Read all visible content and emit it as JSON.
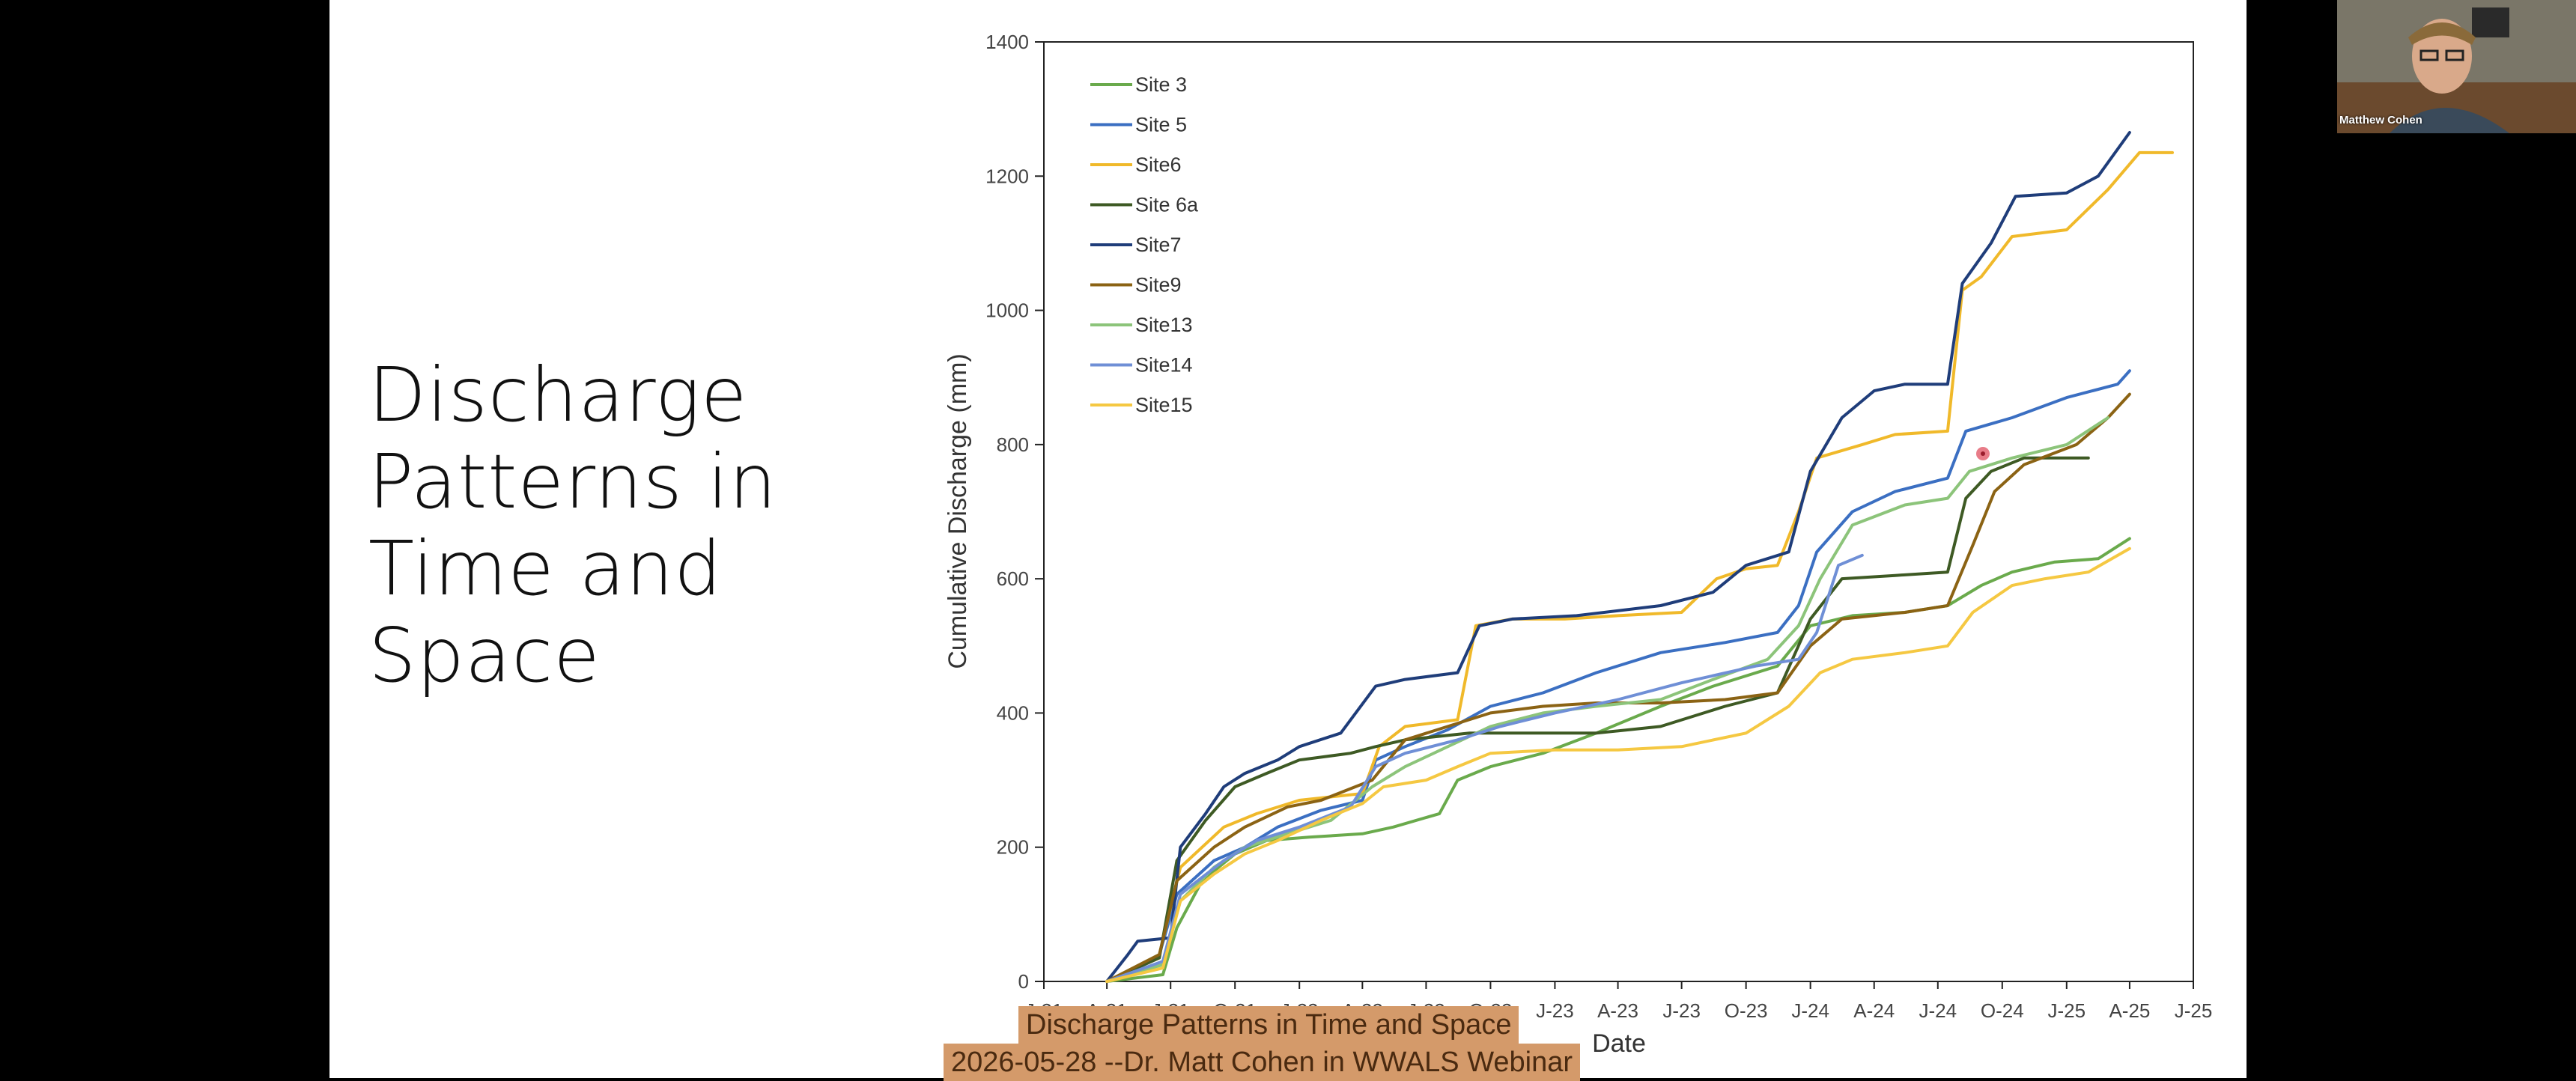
{
  "slide": {
    "title": "Discharge Patterns in Time and Space"
  },
  "participant": {
    "name": "Matthew Cohen"
  },
  "captions": {
    "line1": "Discharge Patterns in Time and Space",
    "line2": "2026-05-28 --Dr. Matt Cohen in WWALS Webinar"
  },
  "chart_data": {
    "type": "line",
    "title": "",
    "xlabel": "Date",
    "ylabel": "Cumulative Discharge (mm)",
    "ylim": [
      0,
      1400
    ],
    "yticks": [
      0,
      200,
      400,
      600,
      800,
      1000,
      1200,
      1400
    ],
    "xlim": [
      "2021-01-01",
      "2025-07-01"
    ],
    "xticks": [
      {
        "date": "2021-01-01",
        "label": "J-21"
      },
      {
        "date": "2021-04-01",
        "label": "A-21"
      },
      {
        "date": "2021-07-01",
        "label": "J-21"
      },
      {
        "date": "2021-10-01",
        "label": "O-21"
      },
      {
        "date": "2022-01-01",
        "label": "J-22"
      },
      {
        "date": "2022-04-01",
        "label": "A-22"
      },
      {
        "date": "2022-07-01",
        "label": "J-22"
      },
      {
        "date": "2022-10-01",
        "label": "O-22"
      },
      {
        "date": "2023-01-01",
        "label": "J-23"
      },
      {
        "date": "2023-04-01",
        "label": "A-23"
      },
      {
        "date": "2023-07-01",
        "label": "J-23"
      },
      {
        "date": "2023-10-01",
        "label": "O-23"
      },
      {
        "date": "2024-01-01",
        "label": "J-24"
      },
      {
        "date": "2024-04-01",
        "label": "A-24"
      },
      {
        "date": "2024-07-01",
        "label": "J-24"
      },
      {
        "date": "2024-10-01",
        "label": "O-24"
      },
      {
        "date": "2025-01-01",
        "label": "J-25"
      },
      {
        "date": "2025-04-01",
        "label": "A-25"
      },
      {
        "date": "2025-07-01",
        "label": "J-25"
      }
    ],
    "grid": false,
    "legend_position": "top-left",
    "series": [
      {
        "name": "Site 3",
        "color": "#6aaa4c",
        "points": [
          [
            "2021-04-01",
            0
          ],
          [
            "2021-06-20",
            10
          ],
          [
            "2021-07-10",
            80
          ],
          [
            "2021-08-15",
            150
          ],
          [
            "2021-10-01",
            190
          ],
          [
            "2021-11-15",
            210
          ],
          [
            "2022-01-15",
            215
          ],
          [
            "2022-04-01",
            220
          ],
          [
            "2022-05-15",
            230
          ],
          [
            "2022-07-20",
            250
          ],
          [
            "2022-08-15",
            300
          ],
          [
            "2022-10-01",
            320
          ],
          [
            "2022-12-15",
            340
          ],
          [
            "2023-03-01",
            370
          ],
          [
            "2023-06-01",
            410
          ],
          [
            "2023-08-15",
            440
          ],
          [
            "2023-11-15",
            470
          ],
          [
            "2024-01-01",
            530
          ],
          [
            "2024-03-01",
            545
          ],
          [
            "2024-05-15",
            550
          ],
          [
            "2024-07-15",
            560
          ],
          [
            "2024-09-01",
            590
          ],
          [
            "2024-10-15",
            610
          ],
          [
            "2024-12-15",
            625
          ],
          [
            "2025-02-15",
            630
          ],
          [
            "2025-04-01",
            660
          ]
        ]
      },
      {
        "name": "Site 5",
        "color": "#3b6fc2",
        "points": [
          [
            "2021-04-01",
            0
          ],
          [
            "2021-06-15",
            40
          ],
          [
            "2021-07-10",
            130
          ],
          [
            "2021-09-01",
            180
          ],
          [
            "2021-10-15",
            200
          ],
          [
            "2021-12-01",
            230
          ],
          [
            "2022-02-01",
            255
          ],
          [
            "2022-04-01",
            270
          ],
          [
            "2022-04-20",
            330
          ],
          [
            "2022-06-01",
            350
          ],
          [
            "2022-08-01",
            375
          ],
          [
            "2022-10-01",
            410
          ],
          [
            "2022-12-15",
            430
          ],
          [
            "2023-03-01",
            460
          ],
          [
            "2023-06-01",
            490
          ],
          [
            "2023-09-01",
            505
          ],
          [
            "2023-11-15",
            520
          ],
          [
            "2023-12-15",
            560
          ],
          [
            "2024-01-10",
            640
          ],
          [
            "2024-03-01",
            700
          ],
          [
            "2024-05-01",
            730
          ],
          [
            "2024-07-15",
            750
          ],
          [
            "2024-08-10",
            820
          ],
          [
            "2024-10-15",
            840
          ],
          [
            "2025-01-01",
            870
          ],
          [
            "2025-03-15",
            890
          ],
          [
            "2025-04-01",
            910
          ]
        ]
      },
      {
        "name": "Site6",
        "color": "#f0b92a",
        "points": [
          [
            "2021-04-01",
            0
          ],
          [
            "2021-06-15",
            40
          ],
          [
            "2021-07-15",
            170
          ],
          [
            "2021-09-15",
            230
          ],
          [
            "2021-11-01",
            250
          ],
          [
            "2022-01-01",
            270
          ],
          [
            "2022-04-01",
            280
          ],
          [
            "2022-04-25",
            350
          ],
          [
            "2022-06-01",
            380
          ],
          [
            "2022-08-15",
            390
          ],
          [
            "2022-09-10",
            530
          ],
          [
            "2022-11-01",
            540
          ],
          [
            "2023-01-15",
            540
          ],
          [
            "2023-04-01",
            545
          ],
          [
            "2023-07-01",
            550
          ],
          [
            "2023-08-20",
            600
          ],
          [
            "2023-10-01",
            615
          ],
          [
            "2023-11-15",
            620
          ],
          [
            "2023-12-15",
            700
          ],
          [
            "2024-01-10",
            780
          ],
          [
            "2024-03-15",
            800
          ],
          [
            "2024-05-01",
            815
          ],
          [
            "2024-07-15",
            820
          ],
          [
            "2024-08-05",
            1030
          ],
          [
            "2024-09-01",
            1050
          ],
          [
            "2024-10-15",
            1110
          ],
          [
            "2025-01-01",
            1120
          ],
          [
            "2025-03-01",
            1180
          ],
          [
            "2025-04-15",
            1235
          ],
          [
            "2025-06-01",
            1235
          ]
        ]
      },
      {
        "name": "Site 6a",
        "color": "#3e5a24",
        "points": [
          [
            "2021-04-01",
            0
          ],
          [
            "2021-06-15",
            35
          ],
          [
            "2021-07-10",
            180
          ],
          [
            "2021-08-20",
            240
          ],
          [
            "2021-10-01",
            290
          ],
          [
            "2021-11-15",
            310
          ],
          [
            "2022-01-01",
            330
          ],
          [
            "2022-03-15",
            340
          ],
          [
            "2022-04-20",
            350
          ],
          [
            "2022-06-01",
            360
          ],
          [
            "2022-09-01",
            370
          ],
          [
            "2022-12-01",
            370
          ],
          [
            "2023-03-01",
            370
          ],
          [
            "2023-06-01",
            380
          ],
          [
            "2023-09-01",
            410
          ],
          [
            "2023-11-15",
            430
          ],
          [
            "2024-01-01",
            540
          ],
          [
            "2024-02-15",
            600
          ],
          [
            "2024-05-01",
            605
          ],
          [
            "2024-07-15",
            610
          ],
          [
            "2024-08-10",
            720
          ],
          [
            "2024-09-15",
            760
          ],
          [
            "2024-11-01",
            780
          ],
          [
            "2025-02-01",
            780
          ]
        ]
      },
      {
        "name": "Site7",
        "color": "#1f3d7a",
        "points": [
          [
            "2021-04-01",
            0
          ],
          [
            "2021-05-01",
            40
          ],
          [
            "2021-05-15",
            60
          ],
          [
            "2021-07-01",
            65
          ],
          [
            "2021-07-15",
            200
          ],
          [
            "2021-08-20",
            250
          ],
          [
            "2021-09-15",
            290
          ],
          [
            "2021-10-15",
            310
          ],
          [
            "2021-12-01",
            330
          ],
          [
            "2022-01-01",
            350
          ],
          [
            "2022-03-01",
            370
          ],
          [
            "2022-04-20",
            440
          ],
          [
            "2022-06-01",
            450
          ],
          [
            "2022-08-15",
            460
          ],
          [
            "2022-09-15",
            530
          ],
          [
            "2022-11-01",
            540
          ],
          [
            "2023-02-01",
            545
          ],
          [
            "2023-06-01",
            560
          ],
          [
            "2023-08-15",
            580
          ],
          [
            "2023-10-01",
            620
          ],
          [
            "2023-12-01",
            640
          ],
          [
            "2024-01-01",
            760
          ],
          [
            "2024-02-15",
            840
          ],
          [
            "2024-04-01",
            880
          ],
          [
            "2024-05-15",
            890
          ],
          [
            "2024-07-15",
            890
          ],
          [
            "2024-08-05",
            1040
          ],
          [
            "2024-09-15",
            1100
          ],
          [
            "2024-10-20",
            1170
          ],
          [
            "2025-01-01",
            1175
          ],
          [
            "2025-02-15",
            1200
          ],
          [
            "2025-04-01",
            1265
          ]
        ]
      },
      {
        "name": "Site9",
        "color": "#8b6314",
        "points": [
          [
            "2021-04-01",
            0
          ],
          [
            "2021-06-15",
            40
          ],
          [
            "2021-07-10",
            150
          ],
          [
            "2021-09-01",
            200
          ],
          [
            "2021-10-15",
            230
          ],
          [
            "2021-12-15",
            260
          ],
          [
            "2022-02-01",
            270
          ],
          [
            "2022-04-15",
            300
          ],
          [
            "2022-06-01",
            360
          ],
          [
            "2022-08-01",
            380
          ],
          [
            "2022-10-01",
            400
          ],
          [
            "2022-12-15",
            410
          ],
          [
            "2023-03-01",
            415
          ],
          [
            "2023-06-01",
            415
          ],
          [
            "2023-09-01",
            420
          ],
          [
            "2023-11-15",
            430
          ],
          [
            "2024-01-01",
            500
          ],
          [
            "2024-02-15",
            540
          ],
          [
            "2024-05-15",
            550
          ],
          [
            "2024-07-15",
            560
          ],
          [
            "2024-08-20",
            650
          ],
          [
            "2024-09-20",
            730
          ],
          [
            "2024-11-01",
            770
          ],
          [
            "2025-01-15",
            800
          ],
          [
            "2025-03-01",
            840
          ],
          [
            "2025-04-01",
            875
          ]
        ]
      },
      {
        "name": "Site13",
        "color": "#8cc47a",
        "points": [
          [
            "2021-04-01",
            0
          ],
          [
            "2021-06-20",
            25
          ],
          [
            "2021-07-15",
            120
          ],
          [
            "2021-09-01",
            170
          ],
          [
            "2021-10-15",
            200
          ],
          [
            "2021-12-15",
            220
          ],
          [
            "2022-02-15",
            240
          ],
          [
            "2022-04-15",
            290
          ],
          [
            "2022-06-01",
            320
          ],
          [
            "2022-08-01",
            350
          ],
          [
            "2022-10-01",
            380
          ],
          [
            "2022-12-15",
            400
          ],
          [
            "2023-03-01",
            410
          ],
          [
            "2023-06-01",
            420
          ],
          [
            "2023-08-15",
            450
          ],
          [
            "2023-11-01",
            480
          ],
          [
            "2023-12-15",
            530
          ],
          [
            "2024-01-15",
            600
          ],
          [
            "2024-03-01",
            680
          ],
          [
            "2024-05-15",
            710
          ],
          [
            "2024-07-15",
            720
          ],
          [
            "2024-08-15",
            760
          ],
          [
            "2024-10-15",
            780
          ],
          [
            "2025-01-01",
            800
          ],
          [
            "2025-03-01",
            840
          ]
        ]
      },
      {
        "name": "Site14",
        "color": "#6f8fd6",
        "points": [
          [
            "2021-04-01",
            0
          ],
          [
            "2021-06-20",
            30
          ],
          [
            "2021-07-15",
            130
          ],
          [
            "2021-09-15",
            180
          ],
          [
            "2021-11-01",
            210
          ],
          [
            "2022-01-01",
            230
          ],
          [
            "2022-03-15",
            260
          ],
          [
            "2022-04-20",
            320
          ],
          [
            "2022-06-01",
            340
          ],
          [
            "2022-08-15",
            360
          ],
          [
            "2022-10-15",
            380
          ],
          [
            "2023-01-01",
            400
          ],
          [
            "2023-04-01",
            420
          ],
          [
            "2023-07-01",
            445
          ],
          [
            "2023-10-15",
            470
          ],
          [
            "2023-12-15",
            480
          ],
          [
            "2024-01-10",
            520
          ],
          [
            "2024-02-10",
            620
          ],
          [
            "2024-03-15",
            635
          ]
        ]
      },
      {
        "name": "Site15",
        "color": "#f5c842",
        "points": [
          [
            "2021-04-01",
            0
          ],
          [
            "2021-06-20",
            20
          ],
          [
            "2021-07-15",
            120
          ],
          [
            "2021-09-01",
            160
          ],
          [
            "2021-10-15",
            190
          ],
          [
            "2021-12-01",
            210
          ],
          [
            "2022-02-01",
            240
          ],
          [
            "2022-04-01",
            265
          ],
          [
            "2022-05-01",
            290
          ],
          [
            "2022-07-01",
            300
          ],
          [
            "2022-08-15",
            320
          ],
          [
            "2022-10-01",
            340
          ],
          [
            "2023-01-01",
            345
          ],
          [
            "2023-04-01",
            345
          ],
          [
            "2023-07-01",
            350
          ],
          [
            "2023-10-01",
            370
          ],
          [
            "2023-12-01",
            410
          ],
          [
            "2024-01-15",
            460
          ],
          [
            "2024-03-01",
            480
          ],
          [
            "2024-05-15",
            490
          ],
          [
            "2024-07-15",
            500
          ],
          [
            "2024-08-20",
            550
          ],
          [
            "2024-10-15",
            590
          ],
          [
            "2024-12-01",
            600
          ],
          [
            "2025-02-01",
            610
          ],
          [
            "2025-04-01",
            645
          ]
        ]
      }
    ]
  }
}
